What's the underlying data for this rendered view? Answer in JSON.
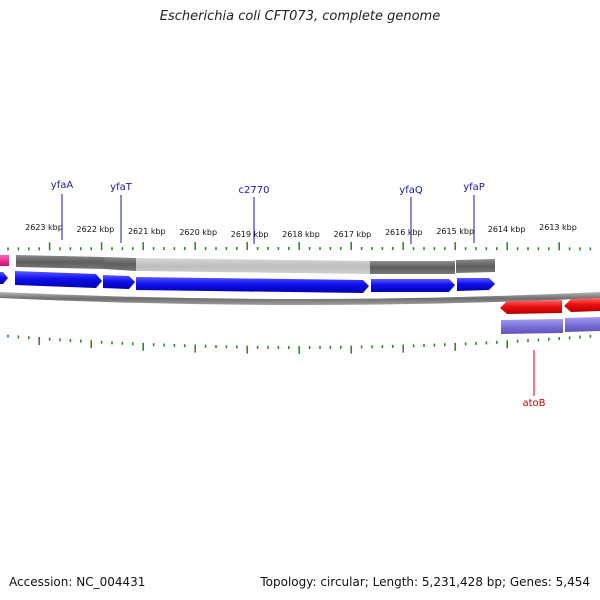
{
  "title": "Escherichia coli CFT073, complete genome",
  "footer": {
    "accession": "Accession: NC_004431",
    "summary": "Topology: circular; Length: 5,231,428 bp; Genes: 5,454"
  },
  "colors": {
    "tick": "#2e8b2e",
    "forward_gene": "#1010ee",
    "reverse_gene": "#ee1111",
    "reverse_track": "#7a70d8",
    "label_forward": "#1a1aa0",
    "label_reverse": "#cc0000",
    "backbone": "#8a8a8a",
    "highlight": "#e0218a"
  },
  "scale": {
    "ticks": [
      {
        "label": "2623 kbp"
      },
      {
        "label": "2622 kbp"
      },
      {
        "label": "2621 kbp"
      },
      {
        "label": "2620 kbp"
      },
      {
        "label": "2619 kbp"
      },
      {
        "label": "2618 kbp"
      },
      {
        "label": "2617 kbp"
      },
      {
        "label": "2616 kbp"
      },
      {
        "label": "2615 kbp"
      },
      {
        "label": "2614 kbp"
      },
      {
        "label": "2613 kbp"
      }
    ]
  },
  "genes": [
    {
      "name": "yfaA",
      "strand": "+"
    },
    {
      "name": "yfaT",
      "strand": "+"
    },
    {
      "name": "c2770",
      "strand": "+"
    },
    {
      "name": "yfaQ",
      "strand": "+"
    },
    {
      "name": "yfaP",
      "strand": "+"
    },
    {
      "name": "atoB",
      "strand": "-"
    }
  ]
}
